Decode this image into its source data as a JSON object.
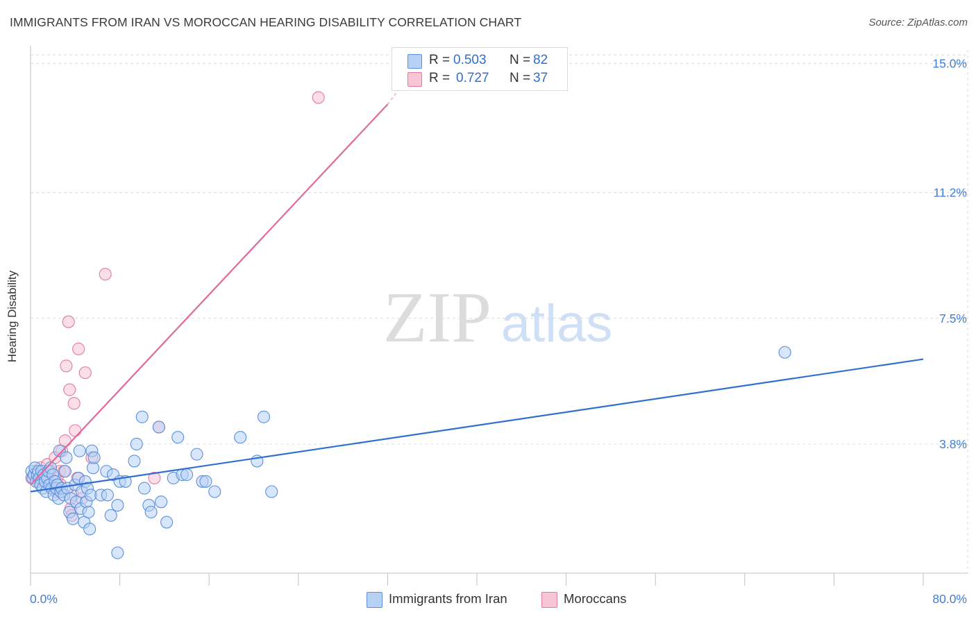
{
  "title": "IMMIGRANTS FROM IRAN VS MOROCCAN HEARING DISABILITY CORRELATION CHART",
  "source": "Source: ZipAtlas.com",
  "watermark": {
    "zip": "ZIP",
    "atlas": "atlas"
  },
  "legend": {
    "rows": [
      {
        "r_label": "R =",
        "r_value": "0.503",
        "n_label": "N =",
        "n_value": "82",
        "fill": "#b7d1f5",
        "stroke": "#5b8fdc"
      },
      {
        "r_label": "R =",
        "r_value": "0.727",
        "n_label": "N =",
        "n_value": "37",
        "fill": "#f8c5d6",
        "stroke": "#e07aa0"
      }
    ]
  },
  "bottom_legend": [
    {
      "label": "Immigrants from Iran",
      "fill": "#b7d1f5",
      "stroke": "#5b8fdc"
    },
    {
      "label": "Moroccans",
      "fill": "#f8c5d6",
      "stroke": "#e07aa0"
    }
  ],
  "chart_data": {
    "type": "scatter",
    "title": "IMMIGRANTS FROM IRAN VS MOROCCAN HEARING DISABILITY CORRELATION CHART",
    "xlabel": "",
    "ylabel": "Hearing Disability",
    "x_tick_labels": [
      "0.0%",
      "80.0%"
    ],
    "y_tick_labels": [
      "3.8%",
      "7.5%",
      "11.2%",
      "15.0%"
    ],
    "y_ticks": [
      3.8,
      7.5,
      11.2,
      15.0
    ],
    "xlim": [
      0,
      80
    ],
    "ylim": [
      0,
      15.4
    ],
    "grid": true,
    "colors": {
      "iran": "#5b8fdc",
      "iran_fill": "#b7d1f5",
      "iran_line": "#2f6fce",
      "morocco": "#e07aa0",
      "morocco_fill": "#f8c5d6",
      "morocco_line": "#e0689a",
      "tick": "#3f7dd6"
    },
    "series": [
      {
        "name": "Immigrants from Iran",
        "trend": {
          "x": [
            0,
            80
          ],
          "y": [
            2.4,
            6.3
          ]
        },
        "points": [
          [
            0.1,
            3.0
          ],
          [
            0.2,
            2.8
          ],
          [
            0.3,
            2.9
          ],
          [
            0.4,
            3.1
          ],
          [
            0.5,
            2.7
          ],
          [
            0.6,
            2.9
          ],
          [
            0.7,
            3.0
          ],
          [
            0.8,
            2.8
          ],
          [
            0.9,
            2.6
          ],
          [
            1.0,
            3.0
          ],
          [
            1.1,
            2.5
          ],
          [
            1.2,
            2.9
          ],
          [
            1.3,
            2.7
          ],
          [
            1.4,
            2.4
          ],
          [
            1.5,
            2.8
          ],
          [
            1.6,
            3.0
          ],
          [
            1.7,
            2.6
          ],
          [
            1.8,
            3.1
          ],
          [
            1.9,
            2.5
          ],
          [
            2.0,
            2.9
          ],
          [
            2.1,
            2.3
          ],
          [
            2.2,
            2.7
          ],
          [
            2.3,
            2.5
          ],
          [
            2.4,
            2.6
          ],
          [
            2.5,
            2.2
          ],
          [
            2.6,
            3.6
          ],
          [
            2.7,
            2.4
          ],
          [
            2.8,
            2.5
          ],
          [
            3.0,
            2.3
          ],
          [
            3.1,
            3.0
          ],
          [
            3.2,
            3.4
          ],
          [
            3.3,
            2.5
          ],
          [
            3.5,
            1.8
          ],
          [
            3.6,
            2.2
          ],
          [
            3.8,
            1.6
          ],
          [
            4.0,
            2.6
          ],
          [
            4.1,
            2.1
          ],
          [
            4.3,
            2.8
          ],
          [
            4.4,
            3.6
          ],
          [
            4.5,
            1.9
          ],
          [
            4.6,
            2.4
          ],
          [
            4.8,
            1.5
          ],
          [
            4.9,
            2.7
          ],
          [
            5.0,
            2.1
          ],
          [
            5.1,
            2.5
          ],
          [
            5.2,
            1.8
          ],
          [
            5.3,
            1.3
          ],
          [
            5.4,
            2.3
          ],
          [
            5.5,
            3.6
          ],
          [
            5.6,
            3.1
          ],
          [
            5.7,
            3.4
          ],
          [
            6.3,
            2.3
          ],
          [
            6.8,
            3.0
          ],
          [
            6.9,
            2.3
          ],
          [
            7.2,
            1.7
          ],
          [
            7.4,
            2.9
          ],
          [
            7.8,
            2.0
          ],
          [
            8.0,
            2.7
          ],
          [
            8.5,
            2.7
          ],
          [
            9.3,
            3.3
          ],
          [
            9.5,
            3.8
          ],
          [
            10.0,
            4.6
          ],
          [
            10.2,
            2.5
          ],
          [
            10.6,
            2.0
          ],
          [
            10.8,
            1.8
          ],
          [
            11.5,
            4.3
          ],
          [
            11.7,
            2.1
          ],
          [
            12.2,
            1.5
          ],
          [
            12.8,
            2.8
          ],
          [
            13.2,
            4.0
          ],
          [
            13.6,
            2.9
          ],
          [
            14.0,
            2.9
          ],
          [
            14.9,
            3.5
          ],
          [
            15.4,
            2.7
          ],
          [
            15.7,
            2.7
          ],
          [
            16.5,
            2.4
          ],
          [
            18.8,
            4.0
          ],
          [
            20.3,
            3.3
          ],
          [
            20.9,
            4.6
          ],
          [
            21.6,
            2.4
          ],
          [
            7.8,
            0.6
          ],
          [
            67.6,
            6.5
          ]
        ]
      },
      {
        "name": "Moroccans",
        "trend": {
          "x": [
            0,
            32
          ],
          "y": [
            2.6,
            13.8
          ],
          "dash_to": {
            "x": 34.5,
            "y": 14.9
          }
        },
        "points": [
          [
            0.1,
            2.8
          ],
          [
            0.3,
            2.9
          ],
          [
            0.5,
            3.0
          ],
          [
            0.7,
            2.7
          ],
          [
            0.9,
            3.1
          ],
          [
            1.1,
            2.8
          ],
          [
            1.3,
            2.9
          ],
          [
            1.5,
            3.2
          ],
          [
            1.6,
            2.7
          ],
          [
            1.8,
            3.0
          ],
          [
            1.9,
            2.5
          ],
          [
            2.0,
            2.9
          ],
          [
            2.2,
            3.4
          ],
          [
            2.3,
            2.4
          ],
          [
            2.4,
            2.8
          ],
          [
            2.6,
            3.0
          ],
          [
            2.7,
            2.6
          ],
          [
            2.8,
            3.6
          ],
          [
            3.0,
            3.0
          ],
          [
            3.1,
            3.9
          ],
          [
            3.2,
            6.1
          ],
          [
            3.4,
            7.4
          ],
          [
            3.5,
            5.4
          ],
          [
            3.6,
            1.9
          ],
          [
            3.7,
            1.7
          ],
          [
            3.8,
            2.3
          ],
          [
            3.9,
            5.0
          ],
          [
            4.0,
            4.2
          ],
          [
            4.2,
            2.8
          ],
          [
            4.3,
            6.6
          ],
          [
            4.6,
            2.2
          ],
          [
            4.9,
            5.9
          ],
          [
            5.5,
            3.4
          ],
          [
            6.7,
            8.8
          ],
          [
            11.1,
            2.8
          ],
          [
            11.5,
            4.3
          ],
          [
            25.8,
            14.0
          ]
        ]
      }
    ]
  }
}
